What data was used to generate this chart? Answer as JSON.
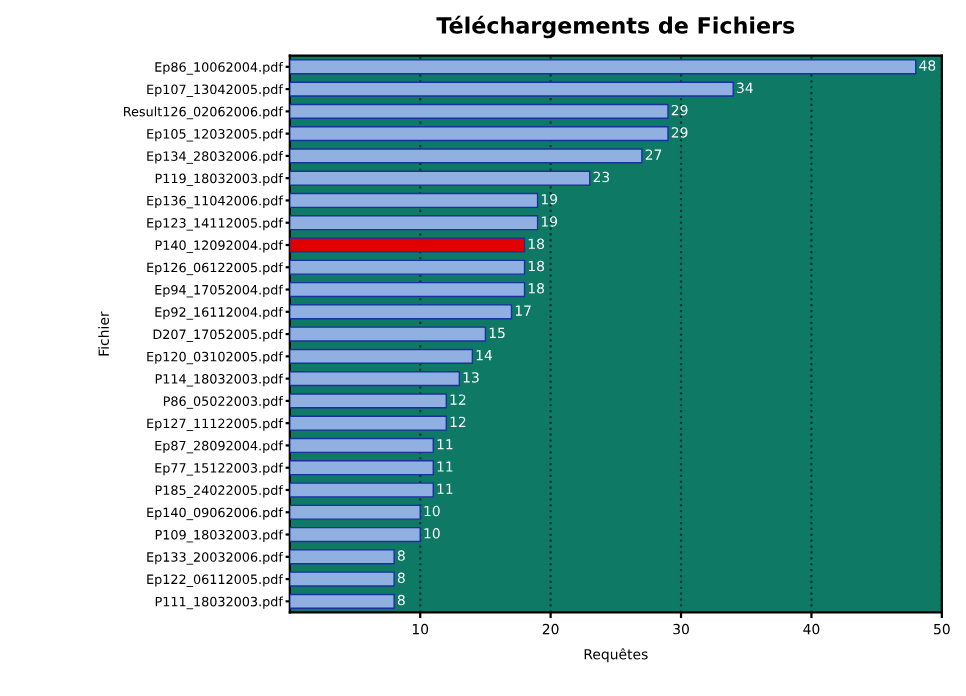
{
  "chart_data": {
    "type": "bar",
    "orientation": "horizontal",
    "title": "Téléchargements de Fichiers",
    "xlabel": "Requêtes",
    "ylabel": "Fichier",
    "categories": [
      "Ep86_10062004.pdf",
      "Ep107_13042005.pdf",
      "Result126_02062006.pdf",
      "Ep105_12032005.pdf",
      "Ep134_28032006.pdf",
      "P119_18032003.pdf",
      "Ep136_11042006.pdf",
      "Ep123_14112005.pdf",
      "P140_12092004.pdf",
      "Ep126_06122005.pdf",
      "Ep94_17052004.pdf",
      "Ep92_16112004.pdf",
      "D207_17052005.pdf",
      "Ep120_03102005.pdf",
      "P114_18032003.pdf",
      "P86_05022003.pdf",
      "Ep127_11122005.pdf",
      "Ep87_28092004.pdf",
      "Ep77_15122003.pdf",
      "P185_24022005.pdf",
      "Ep140_09062006.pdf",
      "P109_18032003.pdf",
      "Ep133_20032006.pdf",
      "Ep122_06112005.pdf",
      "P111_18032003.pdf"
    ],
    "values": [
      48,
      34,
      29,
      29,
      27,
      23,
      19,
      19,
      18,
      18,
      18,
      17,
      15,
      14,
      13,
      12,
      12,
      11,
      11,
      11,
      10,
      10,
      8,
      8,
      8
    ],
    "colors": [
      "#8fb0e0",
      "#8fb0e0",
      "#8fb0e0",
      "#8fb0e0",
      "#8fb0e0",
      "#8fb0e0",
      "#8fb0e0",
      "#8fb0e0",
      "#e00000",
      "#8fb0e0",
      "#8fb0e0",
      "#8fb0e0",
      "#8fb0e0",
      "#8fb0e0",
      "#8fb0e0",
      "#8fb0e0",
      "#8fb0e0",
      "#8fb0e0",
      "#8fb0e0",
      "#8fb0e0",
      "#8fb0e0",
      "#8fb0e0",
      "#8fb0e0",
      "#8fb0e0",
      "#8fb0e0"
    ],
    "xlim": [
      0,
      50
    ],
    "xticks": [
      10,
      20,
      30,
      40,
      50
    ],
    "grid": "x",
    "data_labels": true,
    "legend": false
  }
}
